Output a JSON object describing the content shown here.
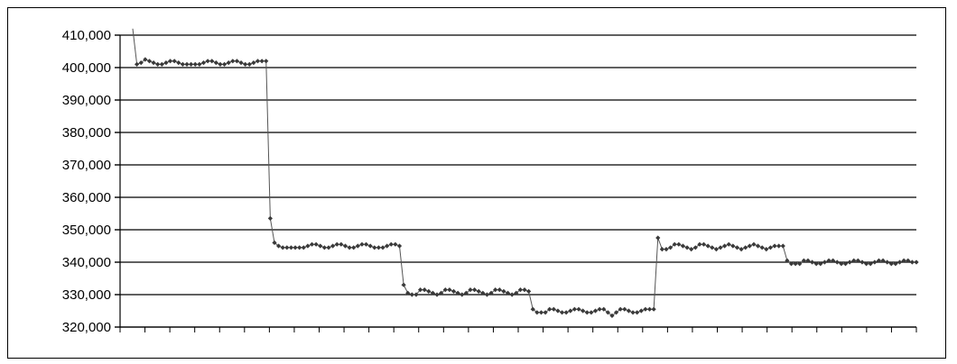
{
  "chart_data": {
    "type": "line",
    "title": "",
    "xlabel": "",
    "ylabel": "",
    "ylim": [
      320000,
      410000
    ],
    "yticks": [
      320000,
      330000,
      340000,
      350000,
      360000,
      370000,
      380000,
      390000,
      400000,
      410000
    ],
    "ytick_labels": [
      "320,000",
      "330,000",
      "340,000",
      "350,000",
      "360,000",
      "370,000",
      "380,000",
      "390,000",
      "400,000",
      "410,000"
    ],
    "grid": true,
    "legend": "none",
    "marker": "diamond",
    "colors": {
      "line": "#555555",
      "marker": "#3a3a3a",
      "grid": "#000000",
      "axis": "#000000"
    },
    "series": [
      {
        "values": [
          412000,
          401000,
          401500,
          402500,
          402000,
          401500,
          401000,
          401000,
          401500,
          402000,
          402000,
          401500,
          401000,
          401000,
          401000,
          401000,
          401000,
          401500,
          402000,
          402000,
          401500,
          401000,
          401000,
          401500,
          402000,
          402000,
          401500,
          401000,
          401000,
          401500,
          402000,
          402000,
          402000,
          353500,
          346000,
          345000,
          344500,
          344500,
          344500,
          344500,
          344500,
          344500,
          345000,
          345500,
          345500,
          345000,
          344500,
          344500,
          345000,
          345500,
          345500,
          345000,
          344500,
          344500,
          345000,
          345500,
          345500,
          345000,
          344500,
          344500,
          344500,
          345000,
          345500,
          345500,
          345000,
          333000,
          330500,
          330000,
          330000,
          331500,
          331500,
          331000,
          330500,
          330000,
          330500,
          331500,
          331500,
          331000,
          330500,
          330000,
          330500,
          331500,
          331500,
          331000,
          330500,
          330000,
          330500,
          331500,
          331500,
          331000,
          330500,
          330000,
          330500,
          331500,
          331500,
          331000,
          325500,
          324500,
          324500,
          324500,
          325500,
          325500,
          325000,
          324500,
          324500,
          325000,
          325500,
          325500,
          325000,
          324500,
          324500,
          325000,
          325500,
          325500,
          324500,
          323500,
          324500,
          325500,
          325500,
          325000,
          324500,
          324500,
          325000,
          325500,
          325500,
          325500,
          347500,
          344000,
          344000,
          344500,
          345500,
          345500,
          345000,
          344500,
          344000,
          344500,
          345500,
          345500,
          345000,
          344500,
          344000,
          344500,
          345000,
          345500,
          345000,
          344500,
          344000,
          344500,
          345000,
          345500,
          345000,
          344500,
          344000,
          344500,
          345000,
          345000,
          345000,
          340500,
          339500,
          339500,
          339500,
          340500,
          340500,
          340000,
          339500,
          339500,
          340000,
          340500,
          340500,
          340000,
          339500,
          339500,
          340000,
          340500,
          340500,
          340000,
          339500,
          339500,
          340000,
          340500,
          340500,
          340000,
          339500,
          339500,
          340000,
          340500,
          340500,
          340000,
          340000
        ]
      }
    ]
  }
}
